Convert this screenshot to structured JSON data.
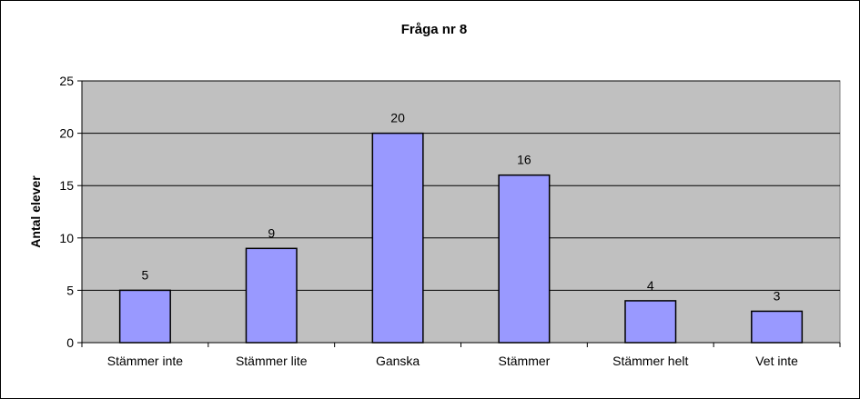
{
  "chart_data": {
    "type": "bar",
    "title": "Fråga nr 8",
    "xlabel": "",
    "ylabel": "Antal elever",
    "categories": [
      "Stämmer inte",
      "Stämmer lite",
      "Ganska",
      "Stämmer",
      "Stämmer helt",
      "Vet inte"
    ],
    "values": [
      5,
      9,
      20,
      16,
      4,
      3
    ],
    "data_labels": [
      "5",
      "9",
      "20",
      "16",
      "4",
      "3"
    ],
    "ylim": [
      0,
      25
    ],
    "yticks": [
      0,
      5,
      10,
      15,
      20,
      25
    ],
    "grid": true,
    "legend": "none",
    "colors": {
      "bar_fill": "#9999FF",
      "bar_stroke": "#000000",
      "plot_background": "#C0C0C0",
      "grid": "#000000"
    }
  }
}
